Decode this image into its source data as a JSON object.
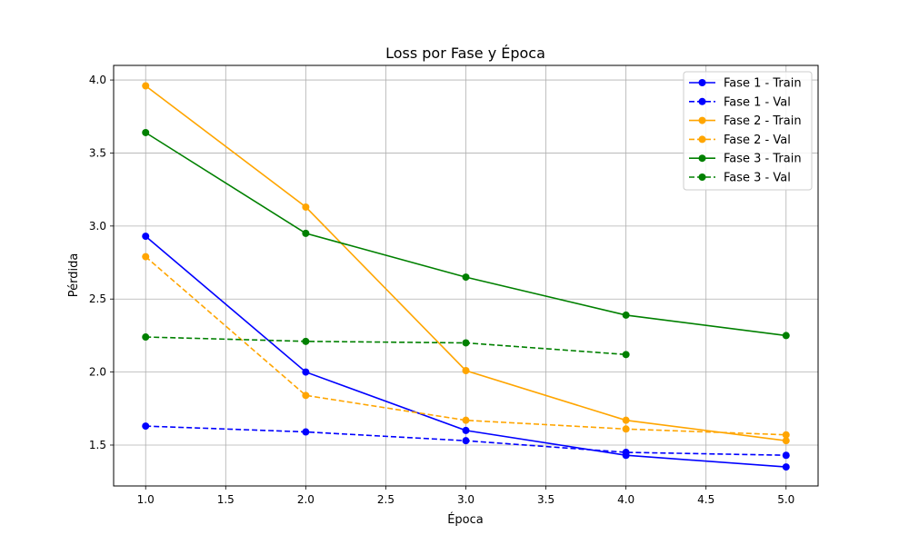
{
  "chart_data": {
    "type": "line",
    "title": "Loss por Fase y Época",
    "xlabel": "Época",
    "ylabel": "Pérdida",
    "xlim": [
      0.8,
      5.2
    ],
    "ylim": [
      1.22,
      4.1
    ],
    "xticks": [
      "1.0",
      "1.5",
      "2.0",
      "2.5",
      "3.0",
      "3.5",
      "4.0",
      "4.5",
      "5.0"
    ],
    "yticks": [
      "1.5",
      "2.0",
      "2.5",
      "3.0",
      "3.5",
      "4.0"
    ],
    "grid": true,
    "legend_position": "top-right",
    "series": [
      {
        "name": "Fase 1 - Train",
        "color": "#0000ff",
        "style": "solid",
        "x": [
          1,
          2,
          3,
          4,
          5
        ],
        "y": [
          2.93,
          2.0,
          1.6,
          1.43,
          1.35
        ]
      },
      {
        "name": "Fase 1 - Val",
        "color": "#0000ff",
        "style": "dashed",
        "x": [
          1,
          2,
          3,
          4,
          5
        ],
        "y": [
          1.63,
          1.59,
          1.53,
          1.45,
          1.43
        ]
      },
      {
        "name": "Fase 2 - Train",
        "color": "#ffa500",
        "style": "solid",
        "x": [
          1,
          2,
          3,
          4,
          5
        ],
        "y": [
          3.96,
          3.13,
          2.01,
          1.67,
          1.53
        ]
      },
      {
        "name": "Fase 2 - Val",
        "color": "#ffa500",
        "style": "dashed",
        "x": [
          1,
          2,
          3,
          4,
          5
        ],
        "y": [
          2.79,
          1.84,
          1.67,
          1.61,
          1.57
        ]
      },
      {
        "name": "Fase 3 - Train",
        "color": "#008000",
        "style": "solid",
        "x": [
          1,
          2,
          3,
          4,
          5
        ],
        "y": [
          3.64,
          2.95,
          2.65,
          2.39,
          2.25
        ]
      },
      {
        "name": "Fase 3 - Val",
        "color": "#008000",
        "style": "dashed",
        "x": [
          1,
          2,
          3,
          4
        ],
        "y": [
          2.24,
          2.21,
          2.2,
          2.12
        ]
      }
    ]
  }
}
